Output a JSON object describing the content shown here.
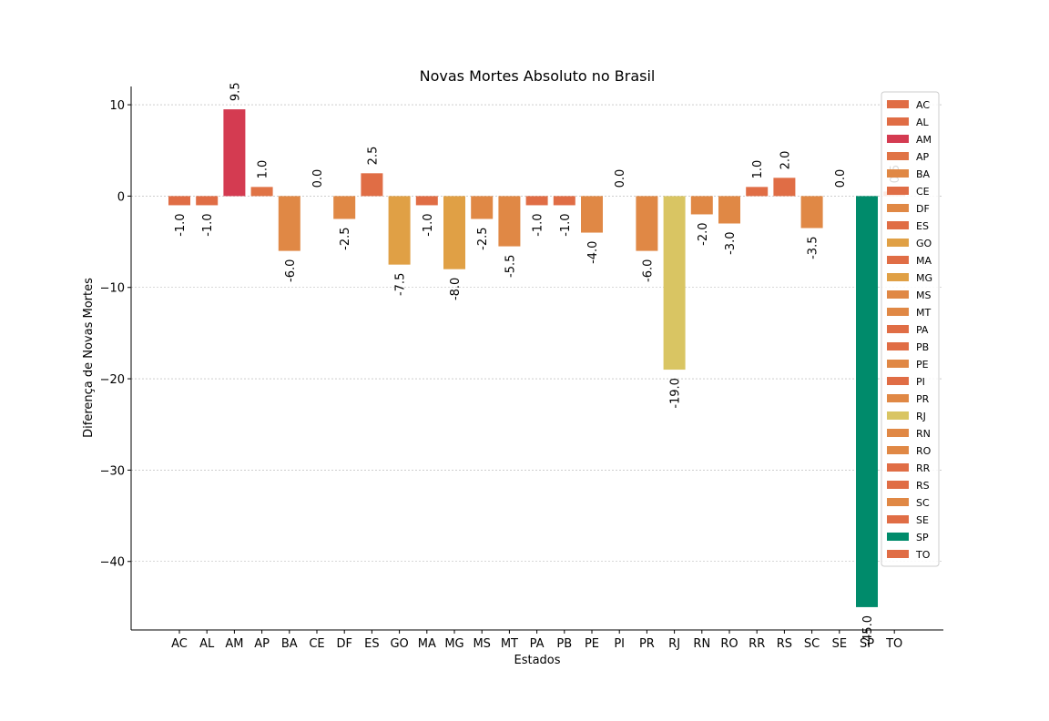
{
  "chart_data": {
    "type": "bar",
    "title": "Novas Mortes Absoluto no Brasil",
    "xlabel": "Estados",
    "ylabel": "Diferença de Novas Mortes",
    "ylim": [
      -47.5,
      12
    ],
    "yticks": [
      10,
      0,
      -10,
      -20,
      -30,
      -40
    ],
    "ytick_labels": [
      "10",
      "0",
      "−10",
      "−20",
      "−30",
      "−40"
    ],
    "grid": "horizontal",
    "legend_position": "top-right",
    "categories": [
      "AC",
      "AL",
      "AM",
      "AP",
      "BA",
      "CE",
      "DF",
      "ES",
      "GO",
      "MA",
      "MG",
      "MS",
      "MT",
      "PA",
      "PB",
      "PE",
      "PI",
      "PR",
      "RJ",
      "RN",
      "RO",
      "RR",
      "RS",
      "SC",
      "SE",
      "SP",
      "TO"
    ],
    "values": [
      -1.0,
      -1.0,
      9.5,
      1.0,
      -6.0,
      0.0,
      -2.5,
      2.5,
      -7.5,
      -1.0,
      -8.0,
      -2.5,
      -5.5,
      -1.0,
      -1.0,
      -4.0,
      0.0,
      -6.0,
      -19.0,
      -2.0,
      -3.0,
      1.0,
      2.0,
      -3.5,
      0.0,
      -45.0,
      0.5
    ],
    "value_labels": [
      "-1.0",
      "-1.0",
      "9.5",
      "1.0",
      "-6.0",
      "0.0",
      "-2.5",
      "2.5",
      "-7.5",
      "-1.0",
      "-8.0",
      "-2.5",
      "-5.5",
      "-1.0",
      "-1.0",
      "-4.0",
      "0.0",
      "-6.0",
      "-19.0",
      "-2.0",
      "-3.0",
      "1.0",
      "2.0",
      "-3.5",
      "0.0",
      "-45.0",
      "0.5"
    ],
    "colors": [
      "#e06d45",
      "#e06d45",
      "#d43b51",
      "#e07345",
      "#e08845",
      "#e06d45",
      "#e08845",
      "#e06d45",
      "#e0a045",
      "#e06d45",
      "#e0a045",
      "#e08845",
      "#e08845",
      "#e06d45",
      "#e06d45",
      "#e08845",
      "#e06d45",
      "#e08845",
      "#d9c563",
      "#e08845",
      "#e08845",
      "#e06d45",
      "#e06d45",
      "#e08845",
      "#e06d45",
      "#008b6b",
      "#e06d45"
    ]
  }
}
